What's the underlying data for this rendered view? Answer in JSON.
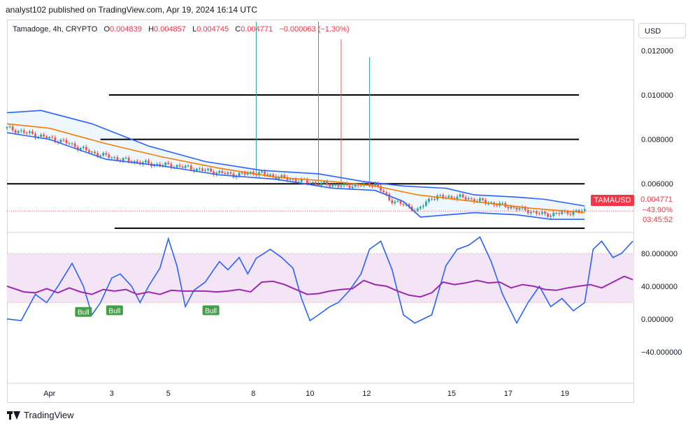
{
  "header": {
    "publisher_line": "analyst102 published on TradingView.com, Apr 19, 2024 16:14 UTC"
  },
  "legend": {
    "symbol_line": "Tamadoge, 4h, CRYPTO",
    "open_label": "O",
    "open_value": "0.004839",
    "high_label": "H",
    "high_value": "0.004857",
    "low_label": "L",
    "low_value": "0.004745",
    "close_label": "C",
    "close_value": "0.004771",
    "change": "−0.000063 (−1.30%)"
  },
  "currency_selector": {
    "label": "USD"
  },
  "price_tag": {
    "symbol": "TAMAUSD",
    "price": "0.004771",
    "change_pct": "−43.90%",
    "countdown": "03:45:52"
  },
  "colors": {
    "up": "#26a69a",
    "down": "#ef5350",
    "bollinger": "#2962ff",
    "basis": "#f57c00",
    "stoch_k": "#2962ff",
    "stoch_d": "#9c27b0",
    "rsi_band": "#f3e5f5",
    "bull_badge": "#43a047"
  },
  "footer": {
    "brand": "TradingView",
    "logo_icon": "tradingview-logo-icon"
  },
  "chart_data": [
    {
      "type": "candlestick",
      "title": "Tamadoge, 4h, CRYPTO",
      "y_ticks": [
        "0.012000",
        "0.010000",
        "0.008000",
        "0.006000"
      ],
      "y_tick_values": [
        0.012,
        0.01,
        0.008,
        0.006
      ],
      "ylim": [
        0.0039,
        0.0133
      ],
      "x_ticks": [
        {
          "label": "Apr",
          "index": 15
        },
        {
          "label": "3",
          "index": 37
        },
        {
          "label": "5",
          "index": 57
        },
        {
          "label": "8",
          "index": 87
        },
        {
          "label": "10",
          "index": 107
        },
        {
          "label": "12",
          "index": 127
        },
        {
          "label": "15",
          "index": 157
        },
        {
          "label": "17",
          "index": 177
        },
        {
          "label": "19",
          "index": 197
        }
      ],
      "horizontal_levels": [
        {
          "price": 0.01,
          "from_index": 36,
          "to_index": 202
        },
        {
          "price": 0.008,
          "from_index": 33,
          "to_index": 202
        },
        {
          "price": 0.006,
          "from_index": 0,
          "to_index": 204
        },
        {
          "price": 0.004,
          "from_index": 38,
          "to_index": 204
        }
      ],
      "spikes": [
        {
          "index": 88,
          "high": 0.0133,
          "color": "up"
        },
        {
          "index": 110,
          "high": 0.0133,
          "color": "up"
        },
        {
          "index": 118,
          "high": 0.0125,
          "color": "down"
        },
        {
          "index": 128,
          "high": 0.0117,
          "color": "up"
        }
      ],
      "close_path": [
        [
          0,
          0.0085
        ],
        [
          10,
          0.0082
        ],
        [
          20,
          0.0079
        ],
        [
          30,
          0.0074
        ],
        [
          40,
          0.0071
        ],
        [
          50,
          0.0069
        ],
        [
          60,
          0.0068
        ],
        [
          70,
          0.0066
        ],
        [
          80,
          0.0064
        ],
        [
          88,
          0.0065
        ],
        [
          100,
          0.0062
        ],
        [
          110,
          0.006
        ],
        [
          120,
          0.0059
        ],
        [
          130,
          0.006
        ],
        [
          135,
          0.0053
        ],
        [
          145,
          0.0048
        ],
        [
          150,
          0.0054
        ],
        [
          160,
          0.0054
        ],
        [
          170,
          0.00515
        ],
        [
          180,
          0.0049
        ],
        [
          190,
          0.0046
        ],
        [
          197,
          0.0047
        ],
        [
          204,
          0.004771
        ]
      ],
      "bollinger_upper": [
        [
          0,
          0.0092
        ],
        [
          12,
          0.0093
        ],
        [
          30,
          0.0087
        ],
        [
          50,
          0.0077
        ],
        [
          70,
          0.007
        ],
        [
          90,
          0.0066
        ],
        [
          110,
          0.00645
        ],
        [
          126,
          0.0061
        ],
        [
          140,
          0.0059
        ],
        [
          155,
          0.0058
        ],
        [
          165,
          0.0055
        ],
        [
          180,
          0.0054
        ],
        [
          190,
          0.0053
        ],
        [
          204,
          0.005
        ]
      ],
      "bollinger_basis": [
        [
          0,
          0.0087
        ],
        [
          15,
          0.0085
        ],
        [
          35,
          0.0078
        ],
        [
          55,
          0.0072
        ],
        [
          75,
          0.0067
        ],
        [
          95,
          0.0063
        ],
        [
          115,
          0.0061
        ],
        [
          130,
          0.0059
        ],
        [
          145,
          0.0055
        ],
        [
          165,
          0.0052
        ],
        [
          185,
          0.0049
        ],
        [
          204,
          0.0047
        ]
      ],
      "bollinger_lower": [
        [
          0,
          0.0083
        ],
        [
          15,
          0.008
        ],
        [
          35,
          0.0071
        ],
        [
          55,
          0.0068
        ],
        [
          75,
          0.0064
        ],
        [
          95,
          0.0062
        ],
        [
          115,
          0.0058
        ],
        [
          130,
          0.0057
        ],
        [
          140,
          0.0052
        ],
        [
          146,
          0.0045
        ],
        [
          165,
          0.0047
        ],
        [
          180,
          0.0046
        ],
        [
          192,
          0.0044
        ],
        [
          204,
          0.0044
        ]
      ]
    },
    {
      "type": "line",
      "title": "",
      "y_ticks": [
        "80.000000",
        "40.000000",
        "0.000000",
        "−40.000000"
      ],
      "y_tick_values": [
        80,
        40,
        0,
        -40
      ],
      "ylim": [
        -76,
        103
      ],
      "band": [
        20,
        80
      ],
      "series": [
        {
          "key": "k",
          "values": [
            [
              0,
              0
            ],
            [
              5,
              -2
            ],
            [
              10,
              30
            ],
            [
              14,
              20
            ],
            [
              18,
              40
            ],
            [
              23,
              68
            ],
            [
              27,
              40
            ],
            [
              30,
              5
            ],
            [
              33,
              20
            ],
            [
              37,
              50
            ],
            [
              40,
              55
            ],
            [
              44,
              40
            ],
            [
              47,
              20
            ],
            [
              50,
              40
            ],
            [
              54,
              62
            ],
            [
              57,
              98
            ],
            [
              60,
              65
            ],
            [
              63,
              15
            ],
            [
              66,
              35
            ],
            [
              70,
              45
            ],
            [
              73,
              60
            ],
            [
              75,
              70
            ],
            [
              78,
              60
            ],
            [
              82,
              75
            ],
            [
              85,
              55
            ],
            [
              88,
              74
            ],
            [
              93,
              85
            ],
            [
              97,
              75
            ],
            [
              101,
              62
            ],
            [
              104,
              25
            ],
            [
              107,
              -2
            ],
            [
              110,
              5
            ],
            [
              114,
              15
            ],
            [
              117,
              20
            ],
            [
              121,
              35
            ],
            [
              125,
              55
            ],
            [
              128,
              85
            ],
            [
              132,
              95
            ],
            [
              136,
              60
            ],
            [
              140,
              5
            ],
            [
              144,
              -5
            ],
            [
              150,
              5
            ],
            [
              155,
              65
            ],
            [
              159,
              85
            ],
            [
              163,
              90
            ],
            [
              167,
              100
            ],
            [
              171,
              70
            ],
            [
              175,
              30
            ],
            [
              180,
              -5
            ],
            [
              184,
              20
            ],
            [
              188,
              40
            ],
            [
              192,
              15
            ],
            [
              196,
              25
            ],
            [
              200,
              10
            ],
            [
              204,
              20
            ],
            [
              207,
              85
            ],
            [
              210,
              95
            ],
            [
              214,
              75
            ],
            [
              217,
              80
            ],
            [
              221,
              95
            ]
          ]
        },
        {
          "key": "d",
          "values": [
            [
              0,
              40
            ],
            [
              6,
              33
            ],
            [
              10,
              32
            ],
            [
              14,
              37
            ],
            [
              18,
              32
            ],
            [
              22,
              38
            ],
            [
              26,
              33
            ],
            [
              30,
              30
            ],
            [
              34,
              36
            ],
            [
              38,
              34
            ],
            [
              42,
              36
            ],
            [
              46,
              30
            ],
            [
              50,
              33
            ],
            [
              54,
              30
            ],
            [
              58,
              35
            ],
            [
              62,
              34
            ],
            [
              66,
              34
            ],
            [
              70,
              34
            ],
            [
              74,
              33
            ],
            [
              78,
              34
            ],
            [
              82,
              36
            ],
            [
              86,
              33
            ],
            [
              90,
              45
            ],
            [
              94,
              46
            ],
            [
              98,
              42
            ],
            [
              102,
              36
            ],
            [
              106,
              30
            ],
            [
              110,
              31
            ],
            [
              114,
              34
            ],
            [
              118,
              36
            ],
            [
              122,
              37
            ],
            [
              126,
              47
            ],
            [
              130,
              42
            ],
            [
              134,
              40
            ],
            [
              138,
              34
            ],
            [
              142,
              29
            ],
            [
              146,
              27
            ],
            [
              150,
              32
            ],
            [
              154,
              45
            ],
            [
              158,
              42
            ],
            [
              162,
              44
            ],
            [
              166,
              47
            ],
            [
              170,
              44
            ],
            [
              174,
              45
            ],
            [
              178,
              38
            ],
            [
              182,
              42
            ],
            [
              186,
              40
            ],
            [
              190,
              36
            ],
            [
              194,
              35
            ],
            [
              198,
              38
            ],
            [
              202,
              40
            ],
            [
              206,
              42
            ],
            [
              210,
              38
            ],
            [
              214,
              45
            ],
            [
              218,
              52
            ],
            [
              221,
              48
            ]
          ]
        }
      ],
      "annotations": [
        {
          "text": "Bull",
          "index": 27,
          "value": 18
        },
        {
          "text": "Bull",
          "index": 38,
          "value": 20
        },
        {
          "text": "Bull",
          "index": 72,
          "value": 20
        }
      ]
    }
  ]
}
